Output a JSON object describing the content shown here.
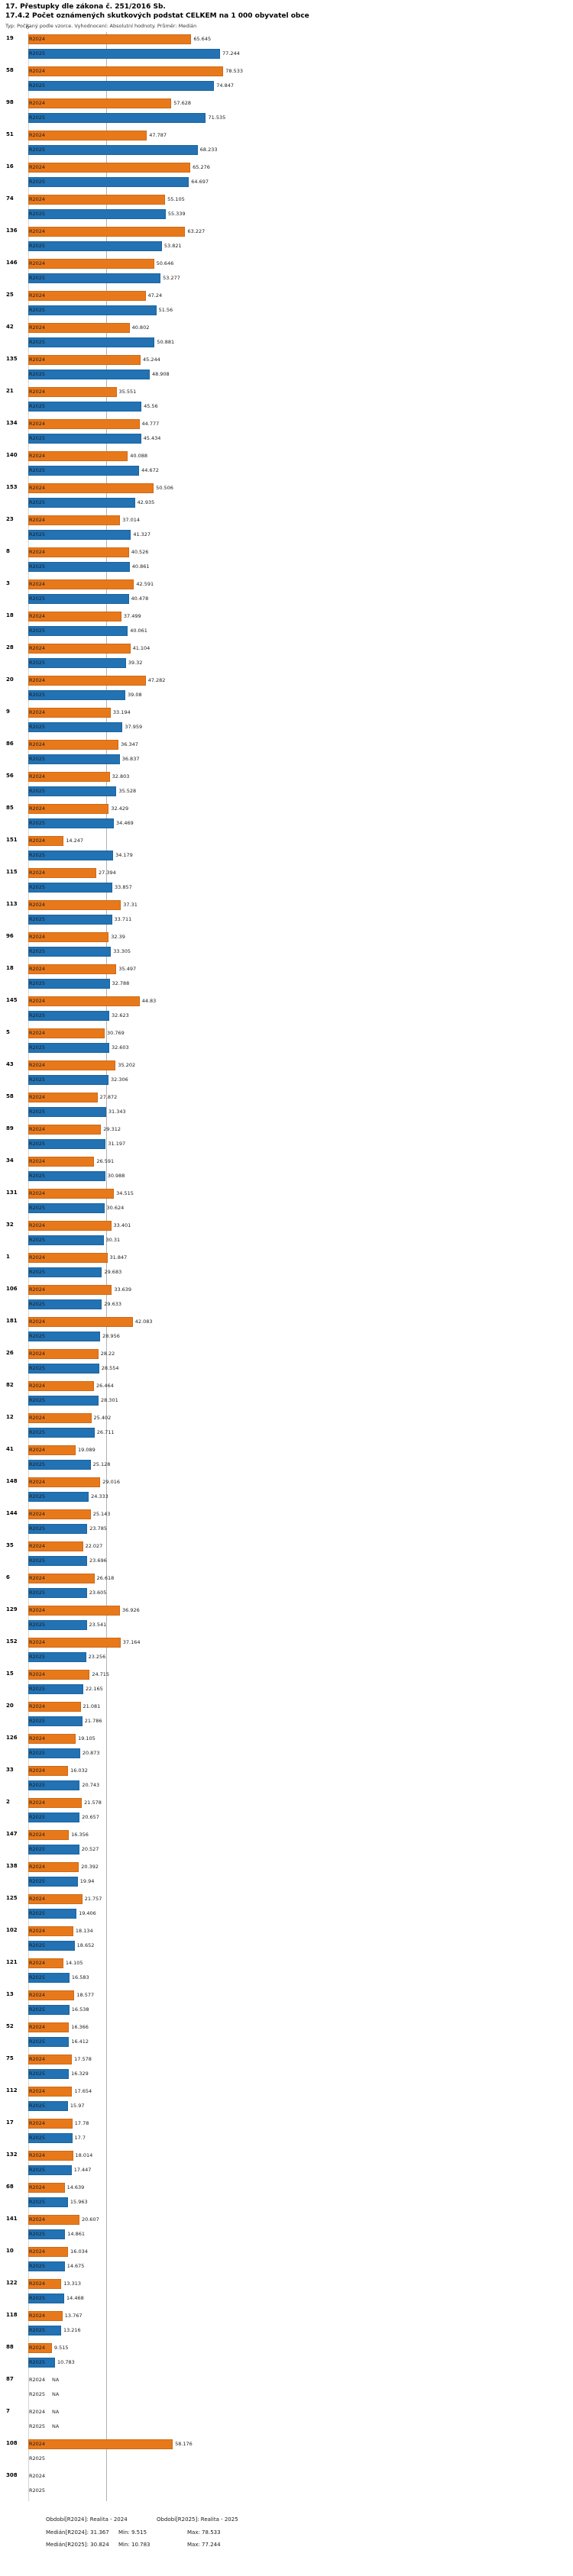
{
  "header": {
    "title": "17. Přestupky dle zákona č. 251/2016 Sb.",
    "subtitle": "17.4.2 Počet oznámených skutkových podstat CELKEM na 1 000 obyvatel obce",
    "meta": "Typ: Počítaný podle vzorce. Vyhodnocení: Absolutní hodnoty. Průměr: Medián"
  },
  "chart_data": {
    "type": "bar",
    "orientation": "horizontal",
    "title": "17.4.2 Počet oznámených skutkových podstat CELKEM na 1 000 obyvatel obce",
    "xlabel": "",
    "ylabel": "",
    "xlim": [
      0,
      80
    ],
    "zero_label": "0",
    "na_label": "NA",
    "median_line": 31.367,
    "series_keys": [
      "r2024",
      "r2025"
    ],
    "series_names": [
      "R2024",
      "R2025"
    ],
    "colors": {
      "r2024": "#e8791b",
      "r2025": "#2272b4"
    },
    "groups": [
      {
        "id": "19",
        "r2024": 65.645,
        "r2025": 77.244
      },
      {
        "id": "58",
        "r2024": 78.533,
        "r2025": 74.847
      },
      {
        "id": "98",
        "r2024": 57.628,
        "r2025": 71.535
      },
      {
        "id": "51",
        "r2024": 47.787,
        "r2025": 68.233
      },
      {
        "id": "16",
        "r2024": 65.276,
        "r2025": 64.697
      },
      {
        "id": "74",
        "r2024": 55.105,
        "r2025": 55.339
      },
      {
        "id": "136",
        "r2024": 63.227,
        "r2025": 53.821
      },
      {
        "id": "146",
        "r2024": 50.646,
        "r2025": 53.277
      },
      {
        "id": "25",
        "r2024": 47.24,
        "r2025": 51.56
      },
      {
        "id": "42",
        "r2024": 40.802,
        "r2025": 50.881
      },
      {
        "id": "135",
        "r2024": 45.244,
        "r2025": 48.908
      },
      {
        "id": "21",
        "r2024": 35.551,
        "r2025": 45.56
      },
      {
        "id": "134",
        "r2024": 44.777,
        "r2025": 45.434
      },
      {
        "id": "140",
        "r2024": 40.088,
        "r2025": 44.672
      },
      {
        "id": "153",
        "r2024": 50.506,
        "r2025": 42.935
      },
      {
        "id": "23",
        "r2024": 37.014,
        "r2025": 41.327
      },
      {
        "id": "8",
        "r2024": 40.526,
        "r2025": 40.861
      },
      {
        "id": "3",
        "r2024": 42.591,
        "r2025": 40.478
      },
      {
        "id": "18",
        "r2024": 37.499,
        "r2025": 40.061
      },
      {
        "id": "28",
        "r2024": 41.104,
        "r2025": 39.32
      },
      {
        "id": "20",
        "r2024": 47.282,
        "r2025": 39.08
      },
      {
        "id": "9",
        "r2024": 33.194,
        "r2025": 37.959
      },
      {
        "id": "86",
        "r2024": 36.347,
        "r2025": 36.837
      },
      {
        "id": "56",
        "r2024": 32.803,
        "r2025": 35.528
      },
      {
        "id": "85",
        "r2024": 32.429,
        "r2025": 34.469
      },
      {
        "id": "151",
        "r2024": 14.247,
        "r2025": 34.179
      },
      {
        "id": "115",
        "r2024": 27.394,
        "r2025": 33.857
      },
      {
        "id": "113",
        "r2024": 37.31,
        "r2025": 33.711
      },
      {
        "id": "96",
        "r2024": 32.39,
        "r2025": 33.305
      },
      {
        "id": "18",
        "r2024": 35.497,
        "r2025": 32.788
      },
      {
        "id": "145",
        "r2024": 44.83,
        "r2025": 32.623
      },
      {
        "id": "5",
        "r2024": 30.769,
        "r2025": 32.603
      },
      {
        "id": "43",
        "r2024": 35.202,
        "r2025": 32.306
      },
      {
        "id": "58",
        "r2024": 27.872,
        "r2025": 31.343
      },
      {
        "id": "89",
        "r2024": 29.312,
        "r2025": 31.197
      },
      {
        "id": "34",
        "r2024": 26.591,
        "r2025": 30.988
      },
      {
        "id": "131",
        "r2024": 34.515,
        "r2025": 30.624
      },
      {
        "id": "32",
        "r2024": 33.401,
        "r2025": 30.31
      },
      {
        "id": "1",
        "r2024": 31.847,
        "r2025": 29.683
      },
      {
        "id": "106",
        "r2024": 33.639,
        "r2025": 29.633
      },
      {
        "id": "181",
        "r2024": 42.083,
        "r2025": 28.956
      },
      {
        "id": "26",
        "r2024": 28.22,
        "r2025": 28.554
      },
      {
        "id": "82",
        "r2024": 26.464,
        "r2025": 28.301
      },
      {
        "id": "12",
        "r2024": 25.402,
        "r2025": 26.711
      },
      {
        "id": "41",
        "r2024": 19.089,
        "r2025": 25.128
      },
      {
        "id": "148",
        "r2024": 29.016,
        "r2025": 24.333
      },
      {
        "id": "144",
        "r2024": 25.143,
        "r2025": 23.785
      },
      {
        "id": "35",
        "r2024": 22.027,
        "r2025": 23.696
      },
      {
        "id": "6",
        "r2024": 26.618,
        "r2025": 23.605
      },
      {
        "id": "129",
        "r2024": 36.926,
        "r2025": 23.541
      },
      {
        "id": "152",
        "r2024": 37.164,
        "r2025": 23.256
      },
      {
        "id": "15",
        "r2024": 24.715,
        "r2025": 22.165
      },
      {
        "id": "20",
        "r2024": 21.081,
        "r2025": 21.786
      },
      {
        "id": "126",
        "r2024": 19.105,
        "r2025": 20.873
      },
      {
        "id": "33",
        "r2024": 16.032,
        "r2025": 20.743
      },
      {
        "id": "2",
        "r2024": 21.578,
        "r2025": 20.657
      },
      {
        "id": "147",
        "r2024": 16.356,
        "r2025": 20.527
      },
      {
        "id": "138",
        "r2024": 20.392,
        "r2025": 19.94
      },
      {
        "id": "125",
        "r2024": 21.757,
        "r2025": 19.406
      },
      {
        "id": "102",
        "r2024": 18.134,
        "r2025": 18.652
      },
      {
        "id": "121",
        "r2024": 14.105,
        "r2025": 16.583
      },
      {
        "id": "13",
        "r2024": 18.577,
        "r2025": 16.538
      },
      {
        "id": "52",
        "r2024": 16.366,
        "r2025": 16.412
      },
      {
        "id": "75",
        "r2024": 17.578,
        "r2025": 16.329
      },
      {
        "id": "112",
        "r2024": 17.654,
        "r2025": 15.97
      },
      {
        "id": "17",
        "r2024": 17.78,
        "r2025": 17.7
      },
      {
        "id": "132",
        "r2024": 18.014,
        "r2025": 17.447
      },
      {
        "id": "68",
        "r2024": 14.639,
        "r2025": 15.963
      },
      {
        "id": "141",
        "r2024": 20.607,
        "r2025": 14.861
      },
      {
        "id": "10",
        "r2024": 16.034,
        "r2025": 14.675
      },
      {
        "id": "122",
        "r2024": 13.313,
        "r2025": 14.468
      },
      {
        "id": "118",
        "r2024": 13.767,
        "r2025": 13.216
      },
      {
        "id": "88",
        "r2024": 9.515,
        "r2025": 10.783
      },
      {
        "id": "87",
        "r2024": "NA",
        "r2025": "NA"
      },
      {
        "id": "7",
        "r2024": "NA",
        "r2025": "NA"
      },
      {
        "id": "108",
        "r2024": 58.176,
        "r2025": null
      },
      {
        "id": "308",
        "r2024": null,
        "r2025": null
      }
    ]
  },
  "footer": {
    "period_2024": "Období[R2024]: Realita - 2024",
    "period_2025": "Období[R2025]: Realita - 2025",
    "median_2024": "Medián[R2024]: 31.367",
    "min_2024": "Min: 9.515",
    "max_2024": "Max: 78.533",
    "median_2025": "Medián[R2025]: 30.824",
    "min_2025": "Min: 10.783",
    "max_2025": "Max: 77.244"
  }
}
